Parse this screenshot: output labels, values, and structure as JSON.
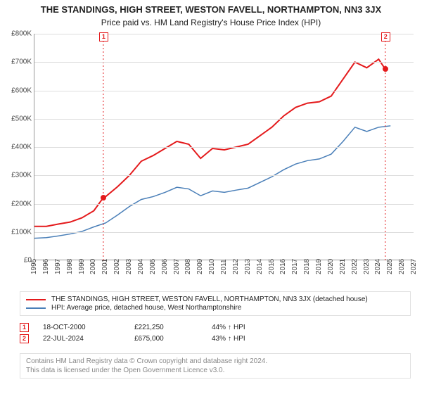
{
  "title_line1": "THE STANDINGS, HIGH STREET, WESTON FAVELL, NORTHAMPTON, NN3 3JX",
  "title_line2": "Price paid vs. HM Land Registry's House Price Index (HPI)",
  "chart": {
    "type": "line",
    "background_color": "#ffffff",
    "grid_color": "#dddddd",
    "axis_color": "#999999",
    "x_min": 1995,
    "x_max": 2027,
    "x_ticks": [
      1995,
      1996,
      1997,
      1998,
      1999,
      2000,
      2001,
      2002,
      2003,
      2004,
      2005,
      2006,
      2007,
      2008,
      2009,
      2010,
      2011,
      2012,
      2013,
      2014,
      2015,
      2016,
      2017,
      2018,
      2019,
      2020,
      2021,
      2022,
      2023,
      2024,
      2025,
      2026,
      2027
    ],
    "y_min": 0,
    "y_max": 800000,
    "y_ticks": [
      0,
      100000,
      200000,
      300000,
      400000,
      500000,
      600000,
      700000,
      800000
    ],
    "y_tick_labels": [
      "£0",
      "£100K",
      "£200K",
      "£300K",
      "£400K",
      "£500K",
      "£600K",
      "£700K",
      "£800K"
    ],
    "series": [
      {
        "name": "property",
        "label": "THE STANDINGS, HIGH STREET, WESTON FAVELL, NORTHAMPTON, NN3 3JX (detached house)",
        "color": "#e41a1c",
        "line_width": 2,
        "data": [
          [
            1995,
            120000
          ],
          [
            1996,
            120000
          ],
          [
            1997,
            128000
          ],
          [
            1998,
            135000
          ],
          [
            1999,
            150000
          ],
          [
            2000,
            175000
          ],
          [
            2000.8,
            221250
          ],
          [
            2001,
            225000
          ],
          [
            2002,
            260000
          ],
          [
            2003,
            300000
          ],
          [
            2004,
            350000
          ],
          [
            2005,
            370000
          ],
          [
            2006,
            395000
          ],
          [
            2007,
            420000
          ],
          [
            2008,
            410000
          ],
          [
            2009,
            360000
          ],
          [
            2010,
            395000
          ],
          [
            2011,
            390000
          ],
          [
            2012,
            400000
          ],
          [
            2013,
            410000
          ],
          [
            2014,
            440000
          ],
          [
            2015,
            470000
          ],
          [
            2016,
            510000
          ],
          [
            2017,
            540000
          ],
          [
            2018,
            555000
          ],
          [
            2019,
            560000
          ],
          [
            2020,
            580000
          ],
          [
            2021,
            640000
          ],
          [
            2022,
            700000
          ],
          [
            2023,
            680000
          ],
          [
            2024,
            710000
          ],
          [
            2024.56,
            675000
          ]
        ]
      },
      {
        "name": "hpi",
        "label": "HPI: Average price, detached house, West Northamptonshire",
        "color": "#4a7fb8",
        "line_width": 1.5,
        "data": [
          [
            1995,
            78000
          ],
          [
            1996,
            80000
          ],
          [
            1997,
            86000
          ],
          [
            1998,
            93000
          ],
          [
            1999,
            102000
          ],
          [
            2000,
            118000
          ],
          [
            2001,
            132000
          ],
          [
            2002,
            160000
          ],
          [
            2003,
            190000
          ],
          [
            2004,
            215000
          ],
          [
            2005,
            225000
          ],
          [
            2006,
            240000
          ],
          [
            2007,
            258000
          ],
          [
            2008,
            252000
          ],
          [
            2009,
            228000
          ],
          [
            2010,
            245000
          ],
          [
            2011,
            240000
          ],
          [
            2012,
            248000
          ],
          [
            2013,
            255000
          ],
          [
            2014,
            275000
          ],
          [
            2015,
            295000
          ],
          [
            2016,
            320000
          ],
          [
            2017,
            340000
          ],
          [
            2018,
            352000
          ],
          [
            2019,
            358000
          ],
          [
            2020,
            375000
          ],
          [
            2021,
            420000
          ],
          [
            2022,
            470000
          ],
          [
            2023,
            455000
          ],
          [
            2024,
            470000
          ],
          [
            2025,
            475000
          ]
        ]
      }
    ],
    "events": [
      {
        "n": "1",
        "x": 2000.8,
        "price": 221250,
        "color": "#e41a1c"
      },
      {
        "n": "2",
        "x": 2024.56,
        "price": 675000,
        "color": "#e41a1c"
      }
    ]
  },
  "legend": {
    "items": [
      {
        "color": "#e41a1c",
        "label": "THE STANDINGS, HIGH STREET, WESTON FAVELL, NORTHAMPTON, NN3 3JX (detached house)"
      },
      {
        "color": "#4a7fb8",
        "label": "HPI: Average price, detached house, West Northamptonshire"
      }
    ]
  },
  "sales": [
    {
      "n": "1",
      "color": "#e41a1c",
      "date": "18-OCT-2000",
      "price": "£221,250",
      "diff": "44%",
      "arrow": "↑",
      "vs": "HPI"
    },
    {
      "n": "2",
      "color": "#e41a1c",
      "date": "22-JUL-2024",
      "price": "£675,000",
      "diff": "43%",
      "arrow": "↑",
      "vs": "HPI"
    }
  ],
  "footer": {
    "line1": "Contains HM Land Registry data © Crown copyright and database right 2024.",
    "line2": "This data is licensed under the Open Government Licence v3.0."
  }
}
